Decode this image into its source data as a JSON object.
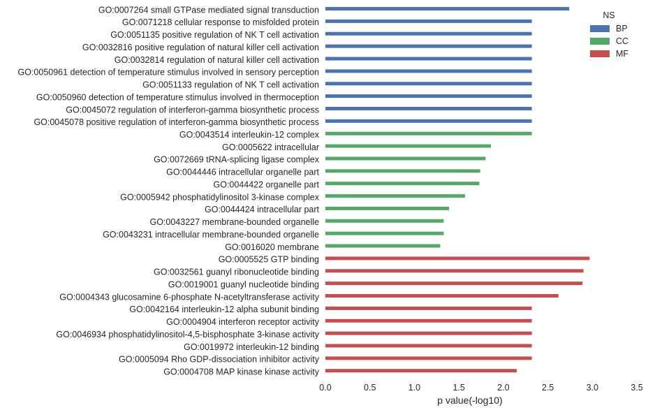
{
  "chart_data": {
    "type": "bar",
    "orientation": "horizontal",
    "xlabel": "p value(-log10)",
    "xlim": [
      0,
      3.5
    ],
    "xticks": [
      "0.0",
      "0.5",
      "1.0",
      "1.5",
      "2.0",
      "2.5",
      "3.0",
      "3.5"
    ],
    "grid": false,
    "legend": {
      "title": "NS",
      "position": "top-right",
      "entries": [
        {
          "name": "BP",
          "color": "#4c72b0"
        },
        {
          "name": "CC",
          "color": "#55a868"
        },
        {
          "name": "MF",
          "color": "#c44e52"
        }
      ]
    },
    "categories": [
      {
        "label": "GO:0007264 small GTPase mediated signal transduction",
        "group": "BP",
        "value": 2.74
      },
      {
        "label": "GO:0071218 cellular response to misfolded protein",
        "group": "BP",
        "value": 2.32
      },
      {
        "label": "GO:0051135 positive regulation of NK T cell activation",
        "group": "BP",
        "value": 2.32
      },
      {
        "label": "GO:0032816 positive regulation of natural killer cell activation",
        "group": "BP",
        "value": 2.32
      },
      {
        "label": "GO:0032814 regulation of natural killer cell activation",
        "group": "BP",
        "value": 2.32
      },
      {
        "label": "GO:0050961 detection of temperature stimulus involved in sensory perception",
        "group": "BP",
        "value": 2.32
      },
      {
        "label": "GO:0051133 regulation of NK T cell activation",
        "group": "BP",
        "value": 2.32
      },
      {
        "label": "GO:0050960 detection of temperature stimulus involved in thermoception",
        "group": "BP",
        "value": 2.32
      },
      {
        "label": "GO:0045072 regulation of interferon-gamma biosynthetic process",
        "group": "BP",
        "value": 2.32
      },
      {
        "label": "GO:0045078 positive regulation of interferon-gamma biosynthetic process",
        "group": "BP",
        "value": 2.32
      },
      {
        "label": "GO:0043514 interleukin-12 complex",
        "group": "CC",
        "value": 2.32
      },
      {
        "label": "GO:0005622 intracellular",
        "group": "CC",
        "value": 1.86
      },
      {
        "label": "GO:0072669 tRNA-splicing ligase complex",
        "group": "CC",
        "value": 1.8
      },
      {
        "label": "GO:0044446 intracellular organelle part",
        "group": "CC",
        "value": 1.74
      },
      {
        "label": "GO:0044422 organelle part",
        "group": "CC",
        "value": 1.73
      },
      {
        "label": "GO:0005942 phosphatidylinositol 3-kinase complex",
        "group": "CC",
        "value": 1.57
      },
      {
        "label": "GO:0044424 intracellular part",
        "group": "CC",
        "value": 1.39
      },
      {
        "label": "GO:0043227 membrane-bounded organelle",
        "group": "CC",
        "value": 1.33
      },
      {
        "label": "GO:0043231 intracellular membrane-bounded organelle",
        "group": "CC",
        "value": 1.33
      },
      {
        "label": "GO:0016020 membrane",
        "group": "CC",
        "value": 1.29
      },
      {
        "label": "GO:0005525 GTP binding",
        "group": "MF",
        "value": 2.97
      },
      {
        "label": "GO:0032561 guanyl ribonucleotide binding",
        "group": "MF",
        "value": 2.9
      },
      {
        "label": "GO:0019001 guanyl nucleotide binding",
        "group": "MF",
        "value": 2.89
      },
      {
        "label": "GO:0004343 glucosamine 6-phosphate N-acetyltransferase activity",
        "group": "MF",
        "value": 2.62
      },
      {
        "label": "GO:0042164 interleukin-12 alpha subunit binding",
        "group": "MF",
        "value": 2.32
      },
      {
        "label": "GO:0004904 interferon receptor activity",
        "group": "MF",
        "value": 2.32
      },
      {
        "label": "GO:0046934 phosphatidylinositol-4,5-bisphosphate 3-kinase activity",
        "group": "MF",
        "value": 2.32
      },
      {
        "label": "GO:0019972 interleukin-12 binding",
        "group": "MF",
        "value": 2.32
      },
      {
        "label": "GO:0005094 Rho GDP-dissociation inhibitor activity",
        "group": "MF",
        "value": 2.32
      },
      {
        "label": "GO:0004708 MAP kinase kinase activity",
        "group": "MF",
        "value": 2.15
      }
    ]
  }
}
